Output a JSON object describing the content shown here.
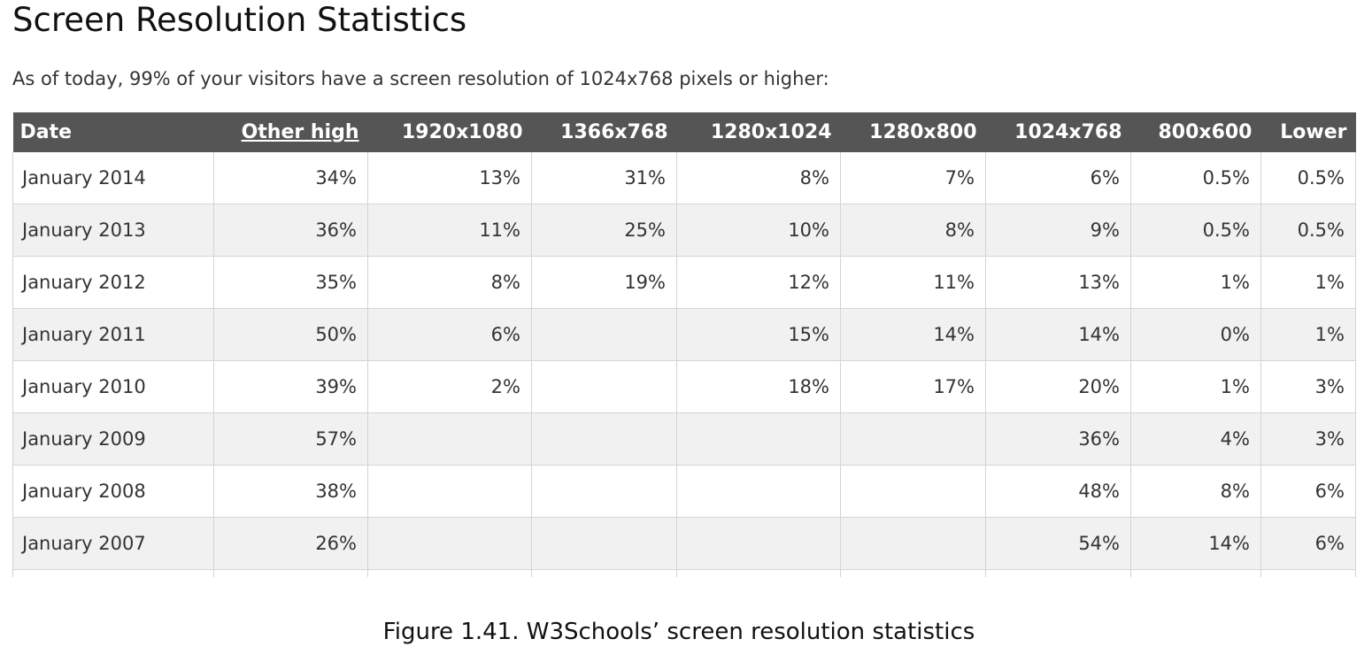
{
  "page": {
    "title": "Screen Resolution Statistics",
    "intro": "As of today, 99% of your visitors have a screen resolution of 1024x768 pixels or higher:"
  },
  "table": {
    "headers": [
      "Date",
      "Other high",
      "1920x1080",
      "1366x768",
      "1280x1024",
      "1280x800",
      "1024x768",
      "800x600",
      "Lower"
    ],
    "rows": [
      [
        "January 2014",
        "34%",
        "13%",
        "31%",
        "8%",
        "7%",
        "6%",
        "0.5%",
        "0.5%"
      ],
      [
        "January 2013",
        "36%",
        "11%",
        "25%",
        "10%",
        "8%",
        "9%",
        "0.5%",
        "0.5%"
      ],
      [
        "January 2012",
        "35%",
        "8%",
        "19%",
        "12%",
        "11%",
        "13%",
        "1%",
        "1%"
      ],
      [
        "January 2011",
        "50%",
        "6%",
        "",
        "15%",
        "14%",
        "14%",
        "0%",
        "1%"
      ],
      [
        "January 2010",
        "39%",
        "2%",
        "",
        "18%",
        "17%",
        "20%",
        "1%",
        "3%"
      ],
      [
        "January 2009",
        "57%",
        "",
        "",
        "",
        "",
        "36%",
        "4%",
        "3%"
      ],
      [
        "January 2008",
        "38%",
        "",
        "",
        "",
        "",
        "48%",
        "8%",
        "6%"
      ],
      [
        "January 2007",
        "26%",
        "",
        "",
        "",
        "",
        "54%",
        "14%",
        "6%"
      ]
    ]
  },
  "caption": "Figure 1.41. W3Schools’ screen resolution statistics",
  "colors": {
    "header_bg": "#555555",
    "header_text": "#ffffff",
    "row_alt_bg": "#f1f1f1",
    "grid": "#d4d4d4"
  }
}
